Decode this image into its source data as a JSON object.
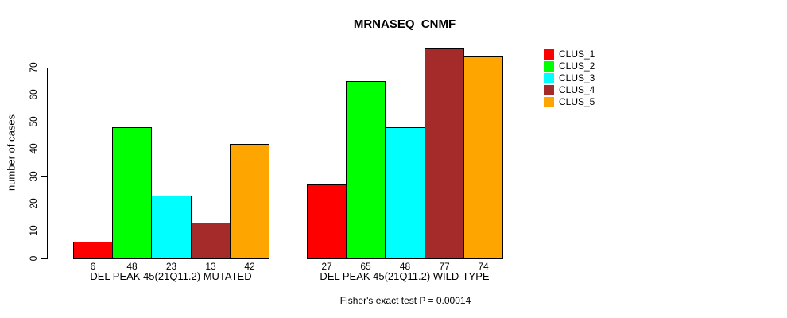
{
  "title": "MRNASEQ_CNMF",
  "caption": "Fisher's exact test P = 0.00014",
  "y_axis": {
    "label": "number of cases",
    "ticks": [
      0,
      10,
      20,
      30,
      40,
      50,
      60,
      70
    ]
  },
  "chart_data": {
    "type": "bar",
    "title": "MRNASEQ_CNMF",
    "xlabel": "",
    "ylabel": "number of cases",
    "categories": [
      "DEL PEAK 45(21Q11.2) MUTATED",
      "DEL PEAK 45(21Q11.2) WILD-TYPE"
    ],
    "series": [
      {
        "name": "CLUS_1",
        "color": "#FF0000",
        "values": [
          6,
          27
        ]
      },
      {
        "name": "CLUS_2",
        "color": "#00FF00",
        "values": [
          48,
          65
        ]
      },
      {
        "name": "CLUS_3",
        "color": "#00FFFF",
        "values": [
          23,
          48
        ]
      },
      {
        "name": "CLUS_4",
        "color": "#A52A2A",
        "values": [
          13,
          77
        ]
      },
      {
        "name": "CLUS_5",
        "color": "#FFA500",
        "values": [
          42,
          74
        ]
      }
    ],
    "bar_value_labels": [
      [
        6,
        48,
        23,
        13,
        42
      ],
      [
        27,
        65,
        48,
        77,
        74
      ]
    ],
    "yticks": [
      0,
      10,
      20,
      30,
      40,
      50,
      60,
      70
    ],
    "ylim": [
      0,
      77
    ],
    "grid": false,
    "legend_position": "right",
    "annotation": "Fisher's exact test P = 0.00014"
  }
}
